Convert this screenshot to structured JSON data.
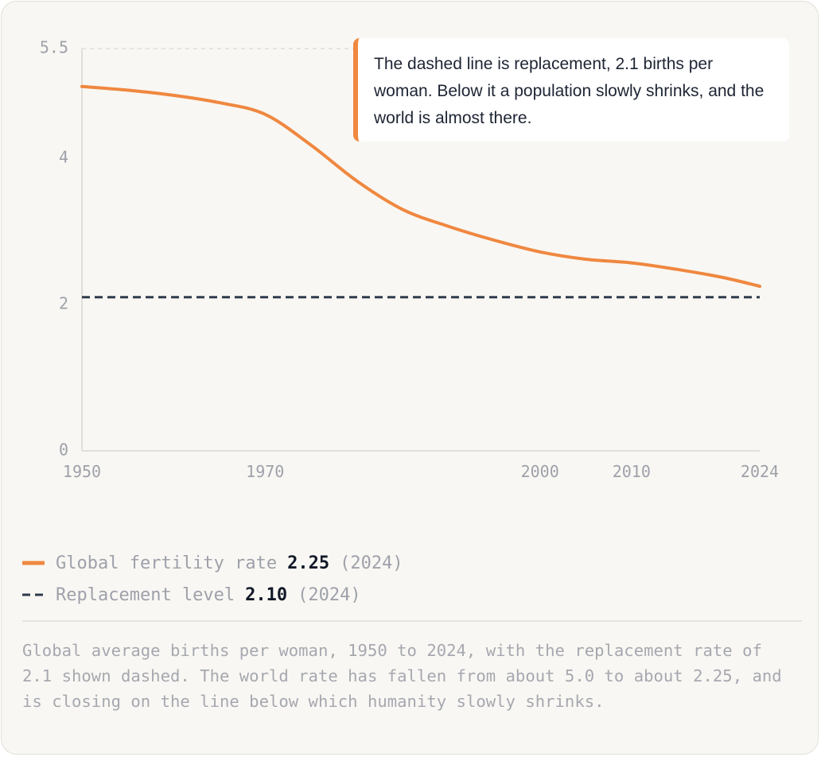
{
  "chart_data": {
    "type": "line",
    "x": [
      1950,
      1955,
      1960,
      1965,
      1970,
      1975,
      1980,
      1985,
      1990,
      1995,
      2000,
      2005,
      2010,
      2015,
      2020,
      2024
    ],
    "series": [
      {
        "name": "Global fertility rate",
        "color": "#ef8840",
        "style": "solid",
        "values": [
          4.98,
          4.93,
          4.86,
          4.76,
          4.6,
          4.18,
          3.69,
          3.3,
          3.07,
          2.88,
          2.72,
          2.62,
          2.57,
          2.48,
          2.37,
          2.25
        ]
      },
      {
        "name": "Replacement level",
        "color": "#2f3b4c",
        "style": "dashed",
        "values": [
          2.1,
          2.1,
          2.1,
          2.1,
          2.1,
          2.1,
          2.1,
          2.1,
          2.1,
          2.1,
          2.1,
          2.1,
          2.1,
          2.1,
          2.1,
          2.1
        ]
      }
    ],
    "xlim": [
      1950,
      2024
    ],
    "ylim": [
      0,
      5.5
    ],
    "y_ticks": [
      0,
      2,
      4,
      5.5
    ],
    "y_tick_labels": [
      "0",
      "2",
      "4",
      "5.5"
    ],
    "x_ticks": [
      1950,
      1970,
      2000,
      2010,
      2024
    ],
    "x_tick_labels": [
      "1950",
      "1970",
      "2000",
      "2010",
      "2024"
    ],
    "grid": "top dashed gridline only",
    "legend_placement": "bottom"
  },
  "annotation": {
    "text": "The dashed line is replacement, 2.1 births per woman. Below it a population slowly shrinks, and the world is almost there.",
    "accent": "#ef8840"
  },
  "legend": [
    {
      "label": "Global fertility rate",
      "value": "2.25",
      "year": "(2024)",
      "color": "#ef8840",
      "style": "solid"
    },
    {
      "label": "Replacement level",
      "value": "2.10",
      "year": "(2024)",
      "color": "#2f3b4c",
      "style": "dashed"
    }
  ],
  "caption": "Global average births per woman, 1950 to 2024, with the replacement rate of 2.1 shown dashed. The world rate has fallen from about 5.0 to about 2.25, and is closing on the line below which humanity slowly shrinks."
}
